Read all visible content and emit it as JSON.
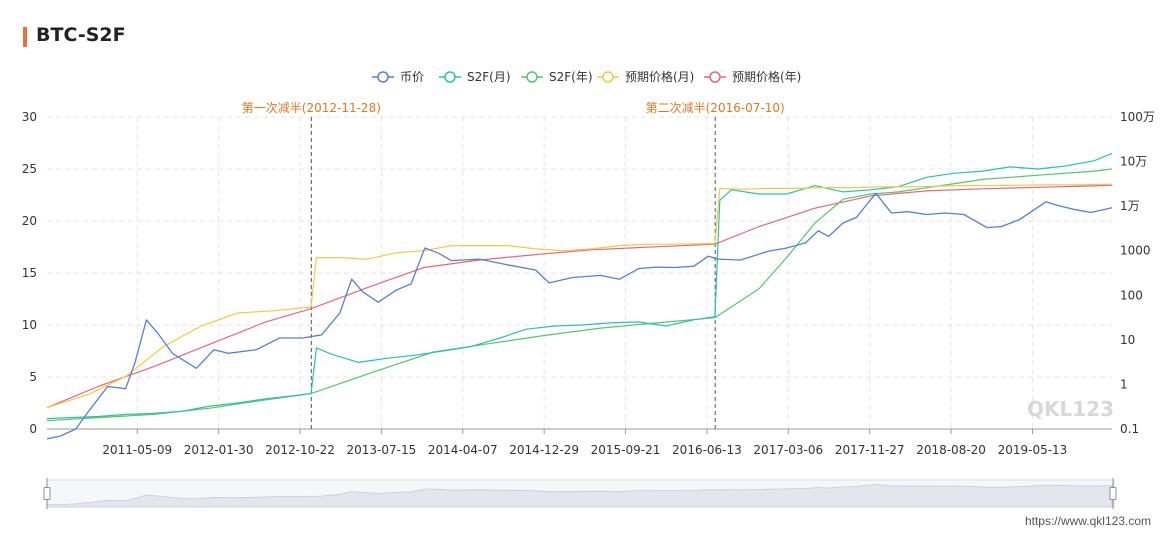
{
  "title": "BTC-S2F",
  "footer_url": "https://www.qkl123.com",
  "watermark": "QKL123",
  "colors": {
    "accent": "#e4743a",
    "price": "#5b7fcf",
    "s2f_month": "#2fbfb0",
    "s2f_year": "#58c46e",
    "pred_month": "#f2c94c",
    "pred_year": "#e06b7e",
    "annotation": "#d97a2b"
  },
  "chart_data": {
    "type": "line",
    "legend_position": "top-center",
    "grid": true,
    "x_ticks": [
      "2011-05-09",
      "2012-01-30",
      "2012-10-22",
      "2013-07-15",
      "2014-04-07",
      "2014-12-29",
      "2015-09-21",
      "2016-06-13",
      "2017-03-06",
      "2017-11-27",
      "2018-08-20",
      "2019-05-13"
    ],
    "x_range": [
      "2010-07-18",
      "2020-01-28"
    ],
    "y_left": {
      "range": [
        0,
        30
      ],
      "ticks": [
        "0",
        "5",
        "10",
        "15",
        "20",
        "25",
        "30"
      ]
    },
    "y_right": {
      "scale": "log",
      "range": [
        0.1,
        1000000
      ],
      "ticks": [
        "0.1",
        "1",
        "10",
        "100",
        "1000",
        "1万",
        "10万",
        "100万"
      ]
    },
    "annotations": [
      {
        "date": "2012-11-28",
        "label": "第一次减半(2012-11-28)"
      },
      {
        "date": "2016-07-10",
        "label": "第二次减半(2016-07-10)"
      }
    ],
    "series": [
      {
        "name": "币价",
        "key": "price",
        "axis": "right",
        "x": [
          "2010-07-18",
          "2010-09-01",
          "2010-10-20",
          "2010-12-01",
          "2011-02-01",
          "2011-04-01",
          "2011-05-01",
          "2011-06-08",
          "2011-07-15",
          "2011-09-01",
          "2011-11-18",
          "2012-01-15",
          "2012-03-01",
          "2012-06-01",
          "2012-08-16",
          "2012-11-01",
          "2013-01-01",
          "2013-03-01",
          "2013-04-09",
          "2013-05-15",
          "2013-07-05",
          "2013-09-01",
          "2013-10-20",
          "2013-12-04",
          "2014-01-15",
          "2014-03-01",
          "2014-06-01",
          "2014-09-01",
          "2014-12-01",
          "2015-01-14",
          "2015-04-01",
          "2015-07-01",
          "2015-09-01",
          "2015-11-04",
          "2016-01-01",
          "2016-03-01",
          "2016-05-01",
          "2016-06-17",
          "2016-07-20",
          "2016-10-01",
          "2017-01-01",
          "2017-03-01",
          "2017-05-01",
          "2017-06-12",
          "2017-07-16",
          "2017-09-01",
          "2017-10-15",
          "2017-12-17",
          "2018-02-06",
          "2018-04-01",
          "2018-06-01",
          "2018-08-01",
          "2018-10-01",
          "2018-12-15",
          "2019-02-01",
          "2019-04-01",
          "2019-06-26",
          "2019-08-01",
          "2019-10-01",
          "2019-11-20",
          "2020-01-28"
        ],
        "y": [
          0.06,
          0.07,
          0.1,
          0.25,
          0.9,
          0.8,
          3,
          28,
          14,
          5,
          2.3,
          6,
          5,
          6,
          11,
          11,
          13,
          40,
          230,
          120,
          70,
          130,
          180,
          1150,
          900,
          600,
          650,
          480,
          370,
          190,
          250,
          280,
          230,
          400,
          430,
          420,
          450,
          750,
          650,
          620,
          980,
          1150,
          1500,
          2800,
          2100,
          4200,
          5600,
          19500,
          7000,
          7500,
          6500,
          7000,
          6500,
          3300,
          3500,
          5000,
          12500,
          10500,
          8300,
          7200,
          9200
        ]
      },
      {
        "name": "S2F(月)",
        "key": "s2f_month",
        "axis": "left",
        "x": [
          "2010-07-18",
          "2010-10-01",
          "2011-01-01",
          "2011-04-01",
          "2011-07-01",
          "2011-10-01",
          "2012-01-01",
          "2012-04-01",
          "2012-07-01",
          "2012-10-01",
          "2012-11-27",
          "2012-12-15",
          "2013-02-01",
          "2013-05-01",
          "2013-08-01",
          "2013-11-01",
          "2014-02-01",
          "2014-05-01",
          "2014-08-01",
          "2014-11-01",
          "2015-02-01",
          "2015-05-01",
          "2015-08-01",
          "2015-11-01",
          "2016-02-01",
          "2016-05-01",
          "2016-07-09",
          "2016-07-25",
          "2016-09-01",
          "2016-12-01",
          "2017-03-01",
          "2017-06-01",
          "2017-09-01",
          "2017-12-01",
          "2018-03-01",
          "2018-06-01",
          "2018-09-01",
          "2018-12-01",
          "2019-03-01",
          "2019-06-01",
          "2019-09-01",
          "2019-12-01",
          "2020-01-28"
        ],
        "y": [
          1.0,
          1.1,
          1.2,
          1.4,
          1.5,
          1.7,
          2.2,
          2.5,
          2.9,
          3.2,
          3.4,
          7.8,
          7.2,
          6.4,
          6.8,
          7.1,
          7.5,
          7.9,
          8.7,
          9.6,
          9.9,
          10.0,
          10.2,
          10.3,
          9.9,
          10.5,
          10.8,
          22.0,
          23.0,
          22.6,
          22.6,
          23.4,
          22.8,
          23.0,
          23.3,
          24.2,
          24.6,
          24.8,
          25.2,
          25.0,
          25.3,
          25.8,
          26.5
        ]
      },
      {
        "name": "S2F(年)",
        "key": "s2f_year",
        "axis": "left",
        "x": [
          "2010-07-18",
          "2011-01-01",
          "2011-07-01",
          "2012-01-01",
          "2012-07-01",
          "2012-11-27",
          "2013-06-01",
          "2014-01-01",
          "2014-07-01",
          "2015-01-01",
          "2015-07-01",
          "2016-01-01",
          "2016-07-09",
          "2016-12-01",
          "2017-03-01",
          "2017-06-01",
          "2017-09-01",
          "2017-12-01",
          "2018-03-01",
          "2018-06-01",
          "2018-09-01",
          "2018-12-01",
          "2019-06-01",
          "2019-12-01",
          "2020-01-28"
        ],
        "y": [
          0.8,
          1.1,
          1.4,
          2.0,
          2.8,
          3.4,
          5.3,
          7.4,
          8.2,
          9.0,
          9.7,
          10.2,
          10.7,
          13.5,
          16.5,
          19.8,
          22.1,
          22.6,
          22.8,
          23.2,
          23.6,
          24.0,
          24.4,
          24.8,
          25.0
        ]
      },
      {
        "name": "预期价格(月)",
        "key": "pred_month",
        "axis": "right",
        "x": [
          "2010-07-18",
          "2010-12-01",
          "2011-04-01",
          "2011-08-01",
          "2011-12-01",
          "2012-04-01",
          "2012-08-01",
          "2012-11-27",
          "2012-12-15",
          "2013-03-01",
          "2013-06-01",
          "2013-09-01",
          "2013-12-01",
          "2014-03-01",
          "2014-06-01",
          "2014-09-01",
          "2014-12-01",
          "2015-03-01",
          "2015-06-01",
          "2015-09-01",
          "2015-12-01",
          "2016-03-01",
          "2016-07-09",
          "2016-07-25",
          "2016-10-01",
          "2017-01-01",
          "2017-04-01",
          "2017-07-01",
          "2017-10-01",
          "2018-01-01",
          "2018-04-01",
          "2018-07-01",
          "2018-10-01",
          "2019-01-01",
          "2019-04-01",
          "2019-07-01",
          "2019-10-01",
          "2020-01-28"
        ],
        "y": [
          0.3,
          0.6,
          1.5,
          7,
          20,
          40,
          45,
          55,
          700,
          700,
          650,
          900,
          1000,
          1300,
          1300,
          1300,
          1100,
          1000,
          1100,
          1300,
          1400,
          1400,
          1450,
          25000,
          24000,
          25000,
          25000,
          26000,
          26000,
          27000,
          27000,
          28000,
          29000,
          29000,
          29500,
          30000,
          30000,
          31000
        ]
      },
      {
        "name": "预期价格(年)",
        "key": "pred_year",
        "axis": "right",
        "x": [
          "2010-07-18",
          "2011-01-01",
          "2011-07-01",
          "2012-01-01",
          "2012-07-01",
          "2012-11-27",
          "2013-06-01",
          "2013-12-01",
          "2014-06-01",
          "2014-12-01",
          "2015-06-01",
          "2015-12-01",
          "2016-07-09",
          "2016-12-01",
          "2017-06-01",
          "2017-12-01",
          "2018-06-01",
          "2018-12-01",
          "2019-06-01",
          "2019-12-01",
          "2020-01-28"
        ],
        "y": [
          0.3,
          0.9,
          2.5,
          8,
          25,
          50,
          150,
          420,
          620,
          820,
          1050,
          1200,
          1400,
          3500,
          9000,
          17000,
          22000,
          24500,
          26500,
          28500,
          29500
        ]
      }
    ]
  }
}
